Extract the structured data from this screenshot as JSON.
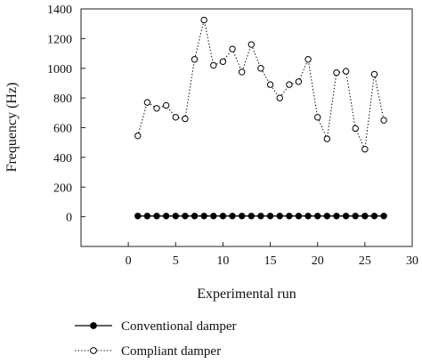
{
  "chart_data": {
    "type": "line",
    "xlabel": "Experimental run",
    "ylabel": "Frequency (Hz)",
    "xlim": [
      -5,
      30
    ],
    "ylim": [
      -200,
      1400
    ],
    "xticks": [
      0,
      5,
      10,
      15,
      20,
      25,
      30
    ],
    "yticks": [
      0,
      200,
      400,
      600,
      800,
      1000,
      1200,
      1400
    ],
    "grid": false,
    "legend_position": "bottom-left, below plot",
    "x": [
      1,
      2,
      3,
      4,
      5,
      6,
      7,
      8,
      9,
      10,
      11,
      12,
      13,
      14,
      15,
      16,
      17,
      18,
      19,
      20,
      21,
      22,
      23,
      24,
      25,
      26,
      27
    ],
    "series": [
      {
        "name": "Conventional damper",
        "marker": "filled-circle",
        "line": "solid",
        "color": "#000000",
        "values": [
          5,
          5,
          5,
          5,
          5,
          5,
          5,
          5,
          5,
          5,
          5,
          5,
          5,
          5,
          5,
          5,
          5,
          5,
          5,
          5,
          5,
          5,
          5,
          5,
          5,
          5,
          5
        ]
      },
      {
        "name": "Compliant damper",
        "marker": "open-circle",
        "line": "dotted",
        "color": "#000000",
        "values": [
          545,
          770,
          730,
          750,
          670,
          660,
          1060,
          1325,
          1020,
          1045,
          1130,
          975,
          1160,
          1000,
          890,
          800,
          890,
          910,
          1060,
          670,
          525,
          970,
          980,
          595,
          455,
          960,
          650
        ]
      }
    ]
  }
}
